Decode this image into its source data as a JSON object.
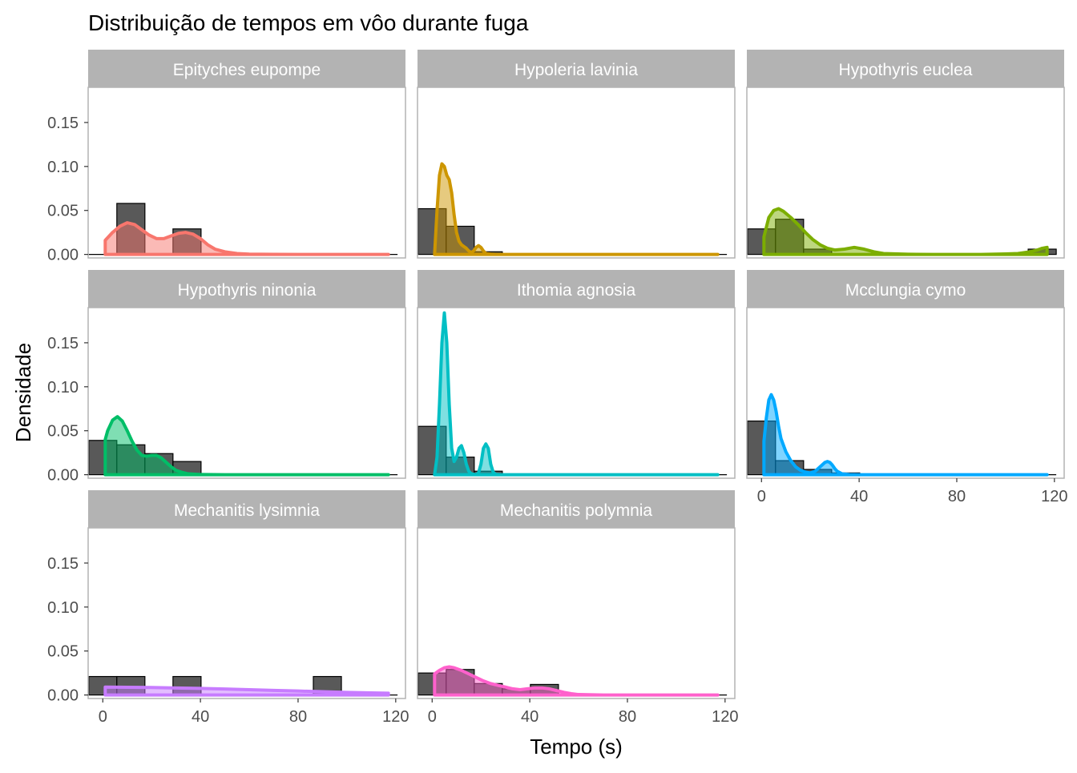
{
  "chart_data": {
    "type": "faceted-histogram-density",
    "title": "Distribuição de tempos em vôo durante fuga",
    "xlabel": "Tempo (s)",
    "ylabel": "Densidade",
    "xlim": [
      -6,
      124
    ],
    "ylim": [
      -0.004,
      0.19
    ],
    "x_ticks": [
      0,
      40,
      80,
      120
    ],
    "y_ticks": [
      0.0,
      0.05,
      0.1,
      0.15
    ],
    "y_tick_labels": [
      "0.00",
      "0.05",
      "0.10",
      "0.15"
    ],
    "bin_width": 11.5,
    "bin_starts": [
      -5.75,
      5.75,
      17.25,
      28.75,
      40.25,
      51.75,
      63.25,
      74.75,
      86.25,
      97.75,
      109.25
    ],
    "facets": [
      {
        "name": "Epityches eupompe",
        "color": "#F8766D",
        "histogram": [
          0.0,
          0.058,
          0.0,
          0.029,
          0.0,
          0.0,
          0.0,
          0.0,
          0.0,
          0.0,
          0.0
        ],
        "density": {
          "x": [
            1,
            4,
            7,
            10,
            13,
            16,
            19,
            22,
            25,
            28,
            31,
            34,
            37,
            40,
            43,
            46,
            50,
            55,
            60,
            70,
            80,
            90,
            100,
            110,
            117
          ],
          "y": [
            0.016,
            0.025,
            0.032,
            0.036,
            0.034,
            0.028,
            0.022,
            0.018,
            0.018,
            0.021,
            0.024,
            0.025,
            0.023,
            0.018,
            0.011,
            0.006,
            0.003,
            0.001,
            0.0003,
            0.0001,
            0.0,
            0.0,
            0.0,
            0.0,
            0.0
          ]
        }
      },
      {
        "name": "Hypoleria lavinia",
        "color": "#CD9600",
        "histogram": [
          0.052,
          0.032,
          0.003,
          0.0,
          0.0,
          0.0,
          0.0,
          0.0,
          0.0,
          0.0,
          0.0
        ],
        "density": {
          "x": [
            1,
            2,
            3,
            4,
            5,
            6,
            7,
            8,
            9,
            10,
            11,
            12,
            13,
            14,
            15,
            16,
            17,
            18,
            19,
            20,
            21,
            22,
            24,
            26,
            30,
            40,
            60,
            80,
            100,
            117
          ],
          "y": [
            0.0,
            0.05,
            0.09,
            0.103,
            0.1,
            0.09,
            0.085,
            0.07,
            0.045,
            0.025,
            0.015,
            0.011,
            0.009,
            0.007,
            0.004,
            0.002,
            0.004,
            0.008,
            0.01,
            0.008,
            0.004,
            0.001,
            0.0003,
            0.0,
            0.0,
            0.0,
            0.0,
            0.0,
            0.0,
            0.0
          ]
        }
      },
      {
        "name": "Hypothyris euclea",
        "color": "#7CAE00",
        "histogram": [
          0.029,
          0.04,
          0.006,
          0.0,
          0.0,
          0.0,
          0.0,
          0.0,
          0.0,
          0.0,
          0.006
        ],
        "density": {
          "x": [
            1,
            3,
            5,
            7,
            9,
            12,
            15,
            18,
            21,
            24,
            27,
            30,
            34,
            38,
            42,
            46,
            50,
            60,
            70,
            80,
            90,
            100,
            105,
            110,
            113,
            115,
            117
          ],
          "y": [
            0.02,
            0.042,
            0.05,
            0.052,
            0.049,
            0.042,
            0.034,
            0.025,
            0.017,
            0.011,
            0.007,
            0.005,
            0.006,
            0.008,
            0.006,
            0.003,
            0.001,
            0.0002,
            0.0,
            0.0,
            0.0,
            0.0005,
            0.001,
            0.003,
            0.005,
            0.007,
            0.008
          ]
        }
      },
      {
        "name": "Hypothyris ninonia",
        "color": "#00BE67",
        "histogram": [
          0.039,
          0.034,
          0.024,
          0.015,
          0.0,
          0.0,
          0.0,
          0.0,
          0.0,
          0.0,
          0.0
        ],
        "density": {
          "x": [
            1,
            2,
            4,
            6,
            8,
            10,
            12,
            14,
            16,
            18,
            20,
            22,
            24,
            26,
            28,
            30,
            32,
            35,
            40,
            50,
            60,
            80,
            100,
            117
          ],
          "y": [
            0.04,
            0.05,
            0.062,
            0.066,
            0.061,
            0.05,
            0.038,
            0.028,
            0.022,
            0.021,
            0.022,
            0.022,
            0.019,
            0.014,
            0.009,
            0.005,
            0.003,
            0.001,
            0.0002,
            0.0,
            0.0,
            0.0,
            0.0,
            0.0
          ]
        }
      },
      {
        "name": "Ithomia agnosia",
        "color": "#00BFC4",
        "histogram": [
          0.055,
          0.02,
          0.004,
          0.0,
          0.0,
          0.0,
          0.0,
          0.0,
          0.0,
          0.0,
          0.0
        ],
        "density": {
          "x": [
            1,
            2,
            3,
            4,
            5,
            6,
            7,
            8,
            9,
            10,
            11,
            12,
            13,
            14,
            15,
            16,
            18,
            19,
            20,
            21,
            22,
            23,
            24,
            25,
            26,
            28,
            35,
            50,
            80,
            117
          ],
          "y": [
            0.0,
            0.02,
            0.08,
            0.15,
            0.184,
            0.15,
            0.08,
            0.03,
            0.015,
            0.02,
            0.03,
            0.033,
            0.025,
            0.012,
            0.004,
            0.001,
            0.0,
            0.002,
            0.012,
            0.03,
            0.035,
            0.03,
            0.012,
            0.003,
            0.0005,
            0.0,
            0.0,
            0.0,
            0.0,
            0.0
          ]
        }
      },
      {
        "name": "Mcclungia cymo",
        "color": "#00A9FF",
        "histogram": [
          0.061,
          0.016,
          0.006,
          0.002,
          0.0,
          0.0,
          0.0,
          0.0,
          0.0,
          0.0,
          0.0
        ],
        "density": {
          "x": [
            1,
            2,
            3,
            4,
            5,
            6,
            7,
            8,
            10,
            12,
            14,
            16,
            18,
            20,
            22,
            24,
            26,
            27,
            28,
            29,
            30,
            31,
            33,
            36,
            40,
            50,
            80,
            117
          ],
          "y": [
            0.038,
            0.065,
            0.085,
            0.091,
            0.085,
            0.072,
            0.055,
            0.041,
            0.026,
            0.016,
            0.009,
            0.005,
            0.003,
            0.002,
            0.004,
            0.009,
            0.014,
            0.015,
            0.014,
            0.011,
            0.007,
            0.004,
            0.001,
            0.0002,
            0.0,
            0.0,
            0.0,
            0.0
          ]
        }
      },
      {
        "name": "Mechanitis lysimnia",
        "color": "#C77CFF",
        "histogram": [
          0.021,
          0.021,
          0.0,
          0.021,
          0.0,
          0.0,
          0.0,
          0.0,
          0.021,
          0.0,
          0.0
        ],
        "density": {
          "x": [
            1,
            10,
            20,
            30,
            40,
            50,
            60,
            70,
            80,
            90,
            100,
            110,
            117
          ],
          "y": [
            0.009,
            0.0088,
            0.0085,
            0.008,
            0.0075,
            0.0068,
            0.006,
            0.0052,
            0.0045,
            0.0037,
            0.003,
            0.0024,
            0.002
          ]
        }
      },
      {
        "name": "Mechanitis polymnia",
        "color": "#FF61CC",
        "histogram": [
          0.025,
          0.029,
          0.013,
          0.007,
          0.012,
          0.0,
          0.0,
          0.0,
          0.0,
          0.0,
          0.0
        ],
        "density": {
          "x": [
            1,
            3,
            5,
            7,
            9,
            12,
            15,
            18,
            21,
            24,
            27,
            30,
            33,
            36,
            39,
            42,
            45,
            48,
            51,
            54,
            57,
            60,
            70,
            80,
            100,
            117
          ],
          "y": [
            0.024,
            0.028,
            0.031,
            0.032,
            0.031,
            0.028,
            0.024,
            0.02,
            0.016,
            0.013,
            0.011,
            0.009,
            0.007,
            0.006,
            0.007,
            0.008,
            0.008,
            0.007,
            0.005,
            0.003,
            0.0015,
            0.0005,
            0.0,
            0.0,
            0.0,
            0.0
          ]
        }
      }
    ],
    "facet_layout": {
      "columns": 3,
      "rows": 3
    },
    "grid": false,
    "legend": "none"
  }
}
